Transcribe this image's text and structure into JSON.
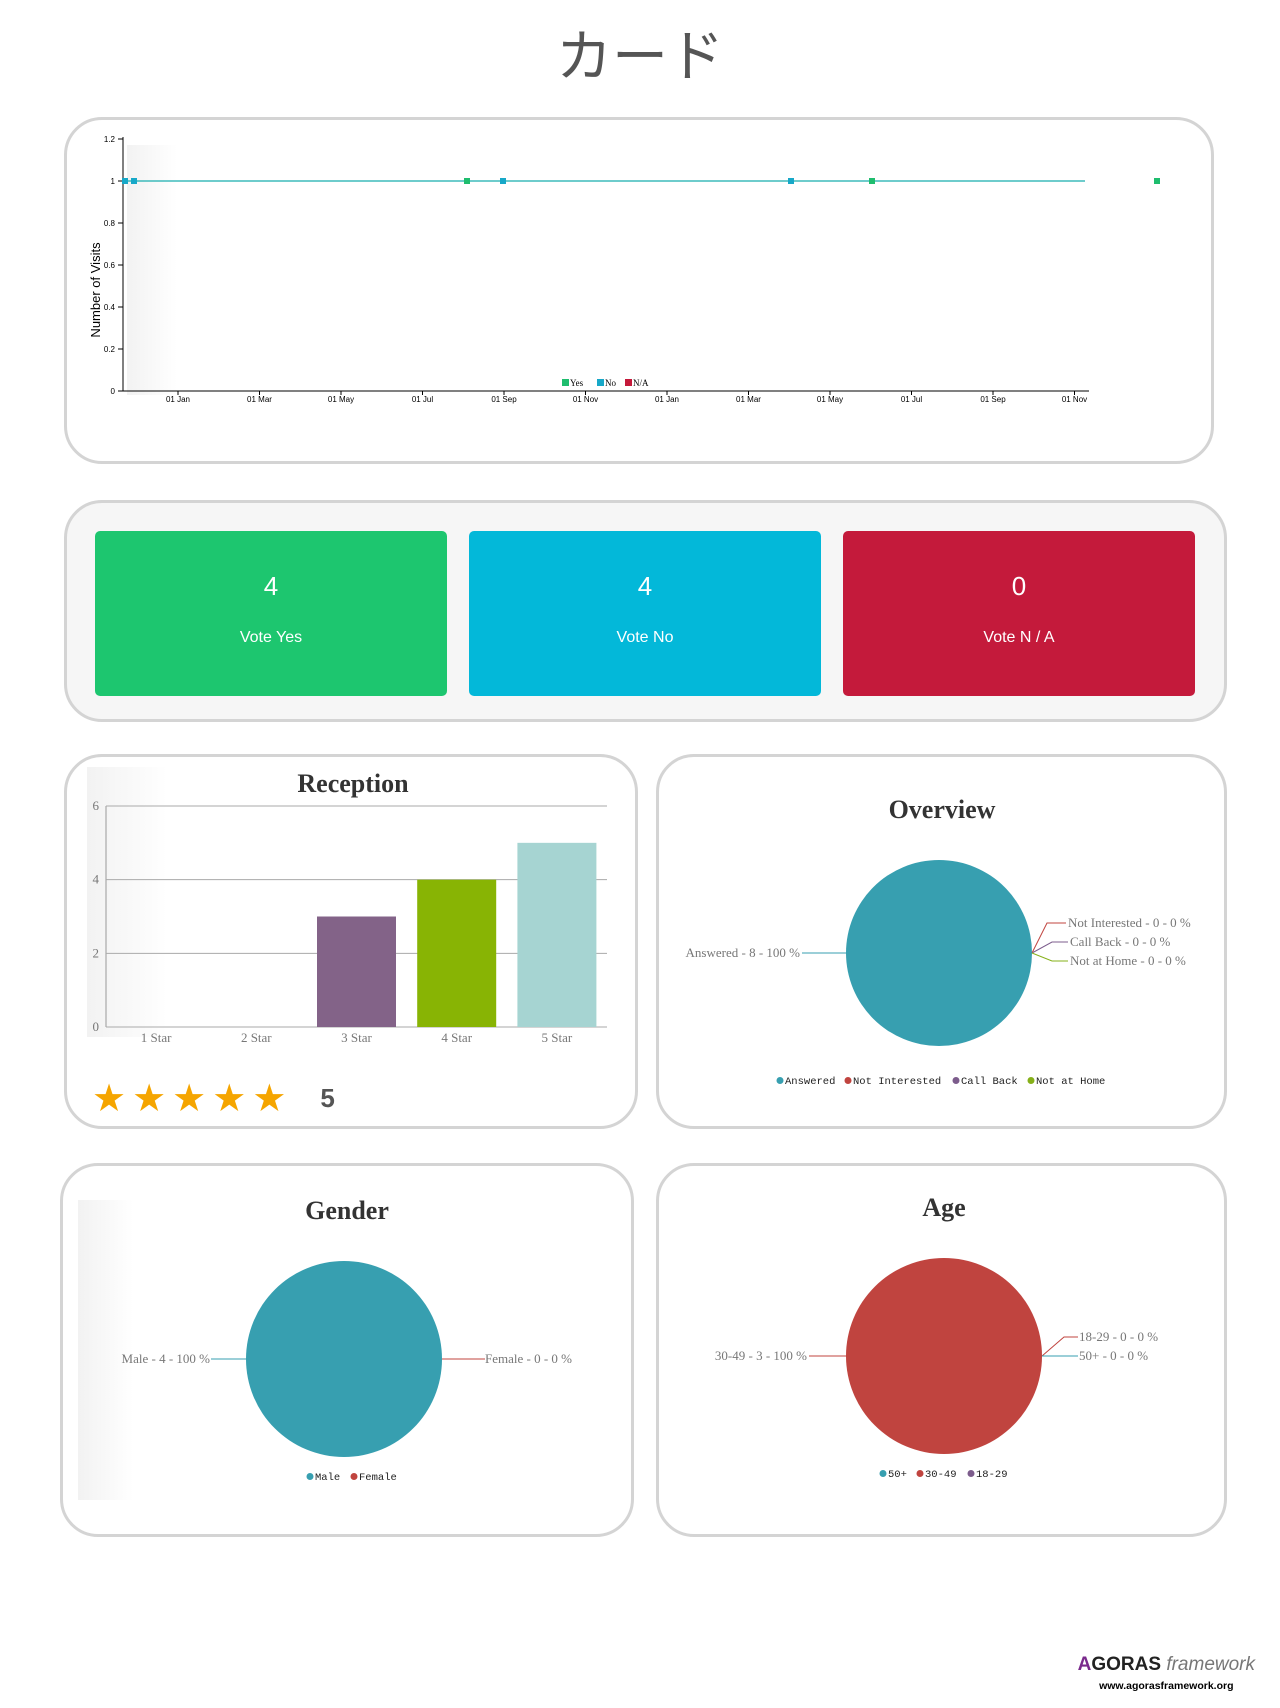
{
  "page_title": "カード",
  "visits_chart": {
    "ylabel": "Number of Visits",
    "yticks": [
      "1.2",
      "1",
      "0.8",
      "0.6",
      "0.4",
      "0.2",
      "0"
    ],
    "xticks": [
      "01 Jan",
      "01 Mar",
      "01 May",
      "01 Jul",
      "01 Sep",
      "01 Nov",
      "01 Jan",
      "01 Mar",
      "01 May",
      "01 Jul",
      "01 Sep",
      "01 Nov"
    ],
    "legend": [
      {
        "label": "Yes",
        "color": "#1fbd6e"
      },
      {
        "label": "No",
        "color": "#17a8c8"
      },
      {
        "label": "N/A",
        "color": "#c4193a"
      }
    ]
  },
  "votes": [
    {
      "count": "4",
      "label": "Vote Yes",
      "color": "#1dc66f"
    },
    {
      "count": "4",
      "label": "Vote No",
      "color": "#03b8d9"
    },
    {
      "count": "0",
      "label": "Vote N / A",
      "color": "#c41a3b"
    }
  ],
  "reception": {
    "title": "Reception",
    "yticks": [
      "6",
      "4",
      "2",
      "0"
    ],
    "rating": "5",
    "star_count": 5
  },
  "overview": {
    "title": "Overview",
    "labels": {
      "answered": "Answered - 8 - 100 %",
      "not_interested": "Not Interested - 0 - 0 %",
      "call_back": "Call Back - 0 - 0 %",
      "not_at_home": "Not at Home - 0 - 0 %"
    },
    "legend": [
      {
        "label": "Answered",
        "color": "#379fb0"
      },
      {
        "label": "Not Interested",
        "color": "#c0443f"
      },
      {
        "label": "Call Back",
        "color": "#7c5c8c"
      },
      {
        "label": "Not at Home",
        "color": "#86b019"
      }
    ]
  },
  "gender": {
    "title": "Gender",
    "labels": {
      "male": "Male - 4 - 100 %",
      "female": "Female - 0 - 0 %"
    },
    "legend": [
      {
        "label": "Male",
        "color": "#379fb0"
      },
      {
        "label": "Female",
        "color": "#c0443f"
      }
    ]
  },
  "age": {
    "title": "Age",
    "labels": {
      "a3049": "30-49 - 3 - 100 %",
      "a1829": "18-29 - 0 - 0 %",
      "a50": "50+ - 0 - 0 %"
    },
    "legend": [
      {
        "label": "50+",
        "color": "#379fb0"
      },
      {
        "label": "30-49",
        "color": "#c0443f"
      },
      {
        "label": "18-29",
        "color": "#7c5c8c"
      }
    ]
  },
  "footer": {
    "logo_a": "A",
    "logo_goras": "GORAS",
    "logo_framework": "framework",
    "url": "www.agorasframework.org"
  },
  "chart_data": [
    {
      "type": "line",
      "ylabel": "Number of Visits",
      "ylim": [
        0,
        1.2
      ],
      "x_axis": [
        "01 Jan",
        "01 Mar",
        "01 May",
        "01 Jul",
        "01 Sep",
        "01 Nov",
        "01 Jan",
        "01 Mar",
        "01 May",
        "01 Jul",
        "01 Sep",
        "01 Nov"
      ],
      "series": [
        {
          "name": "Yes",
          "values": [
            1,
            1,
            1,
            1
          ]
        },
        {
          "name": "No",
          "values": [
            1,
            1,
            1,
            1
          ]
        },
        {
          "name": "N/A",
          "values": []
        }
      ],
      "legend": "bottom"
    },
    {
      "type": "bar",
      "title": "Reception",
      "categories": [
        "1 Star",
        "2 Star",
        "3 Star",
        "4 Star",
        "5 Star"
      ],
      "values": [
        0,
        0,
        3,
        4,
        5
      ],
      "colors": [
        "#7c5c8c",
        "#7c5c8c",
        "#836388",
        "#88b404",
        "#a6d4d2"
      ],
      "ylim": [
        0,
        6
      ],
      "grid": true
    },
    {
      "type": "pie",
      "title": "Overview",
      "categories": [
        "Answered",
        "Not Interested",
        "Call Back",
        "Not at Home"
      ],
      "values": [
        8,
        0,
        0,
        0
      ],
      "legend": "bottom"
    },
    {
      "type": "pie",
      "title": "Gender",
      "categories": [
        "Male",
        "Female"
      ],
      "values": [
        4,
        0
      ],
      "legend": "bottom"
    },
    {
      "type": "pie",
      "title": "Age",
      "categories": [
        "50+",
        "30-49",
        "18-29"
      ],
      "values": [
        0,
        3,
        0
      ],
      "legend": "bottom"
    }
  ]
}
